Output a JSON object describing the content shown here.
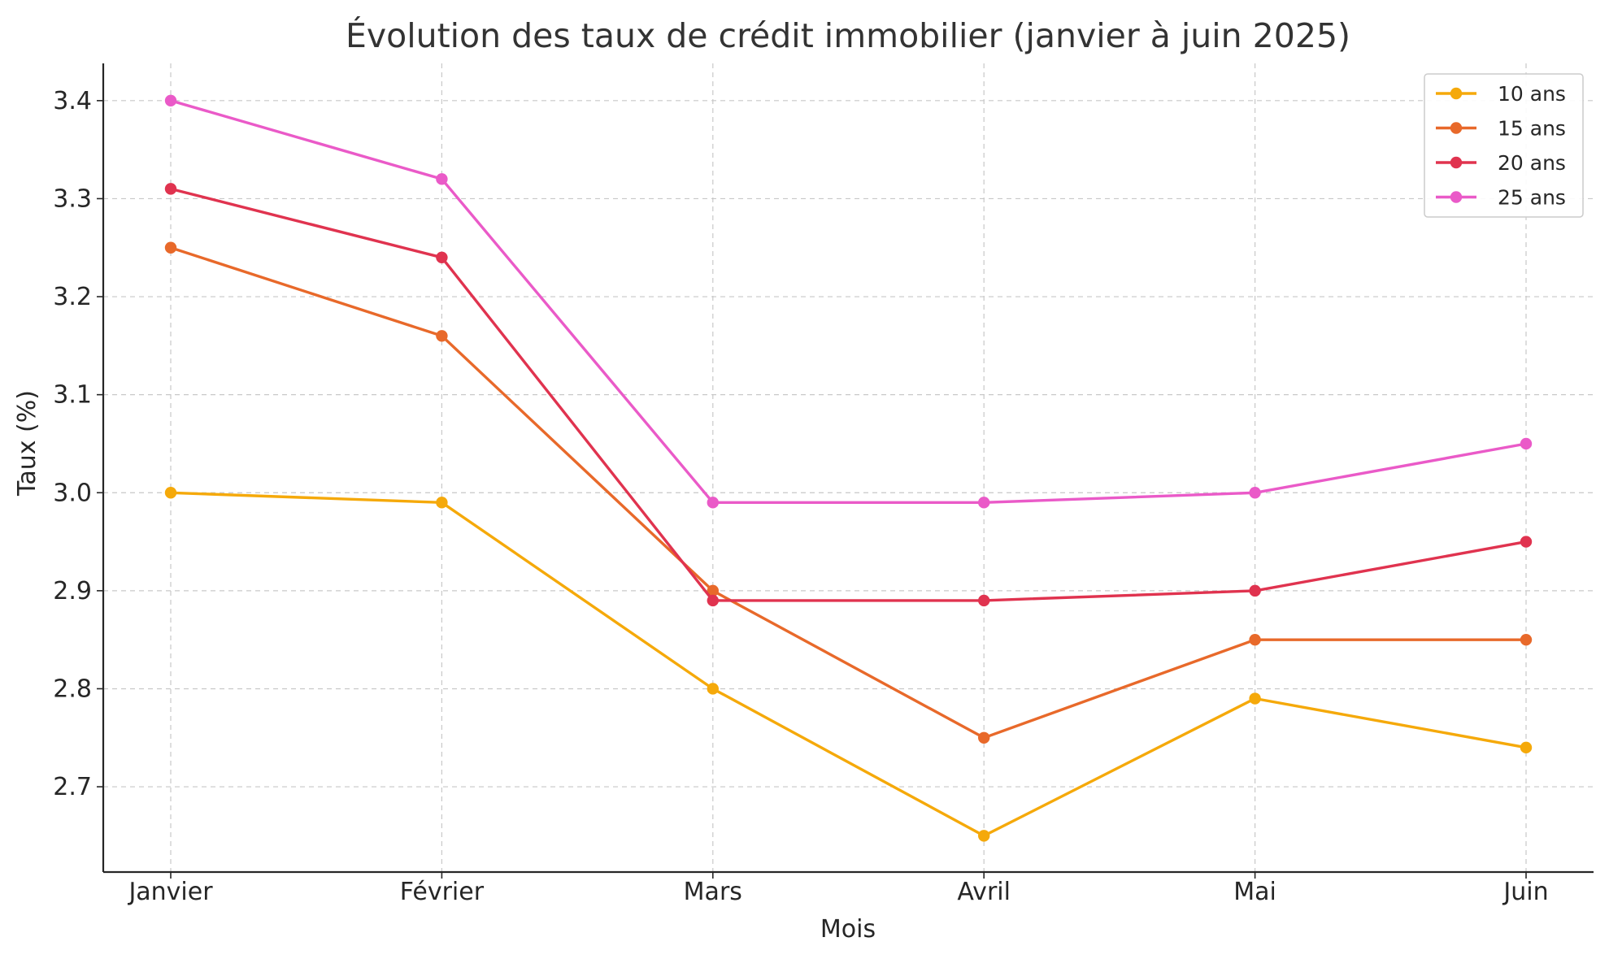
{
  "chart_data": {
    "type": "line",
    "title": "Évolution des taux de crédit immobilier (janvier à juin 2025)",
    "xlabel": "Mois",
    "ylabel": "Taux (%)",
    "categories": [
      "Janvier",
      "Février",
      "Mars",
      "Avril",
      "Mai",
      "Juin"
    ],
    "yticks": [
      "2.7",
      "2.8",
      "2.9",
      "3.0",
      "3.1",
      "3.2",
      "3.3",
      "3.4"
    ],
    "ylim": [
      2.613,
      3.438
    ],
    "grid": true,
    "legend_position": "top-right",
    "series": [
      {
        "name": "10 ans",
        "color": "#f5a90a",
        "values": [
          3.0,
          2.99,
          2.8,
          2.65,
          2.79,
          2.74
        ]
      },
      {
        "name": "15 ans",
        "color": "#e8692a",
        "values": [
          3.25,
          3.16,
          2.9,
          2.75,
          2.85,
          2.85
        ]
      },
      {
        "name": "20 ans",
        "color": "#e0334f",
        "values": [
          3.31,
          3.24,
          2.89,
          2.89,
          2.9,
          2.95
        ]
      },
      {
        "name": "25 ans",
        "color": "#ea5ac8",
        "values": [
          3.4,
          3.32,
          2.99,
          2.99,
          3.0,
          3.05
        ]
      }
    ]
  }
}
